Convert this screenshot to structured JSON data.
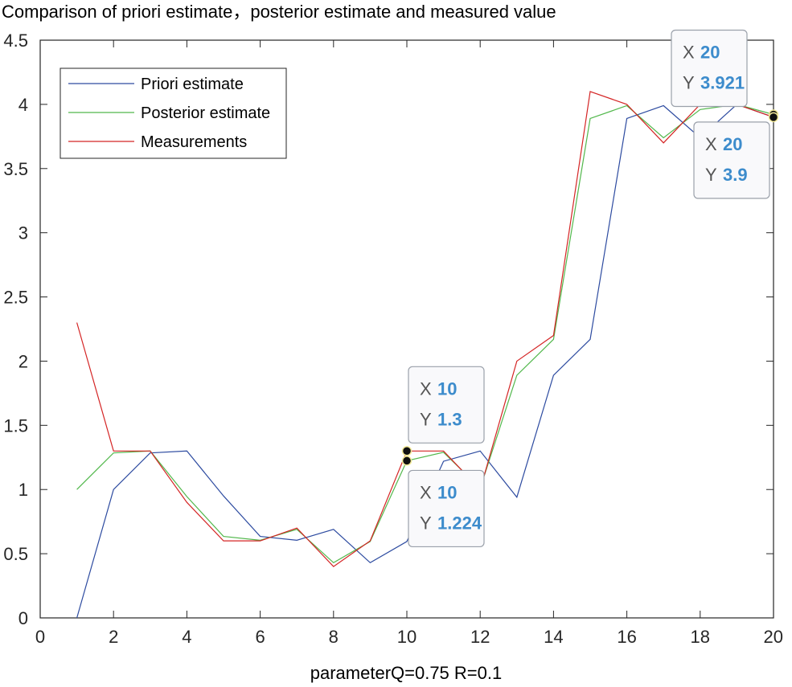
{
  "chart_data": {
    "type": "line",
    "title": "Comparison of priori estimate，posterior estimate and measured value",
    "xlabel": "parameterQ=0.75 R=0.1",
    "ylabel": "",
    "xlim": [
      0,
      20
    ],
    "ylim": [
      0,
      4.5
    ],
    "xticks": [
      0,
      2,
      4,
      6,
      8,
      10,
      12,
      14,
      16,
      18,
      20
    ],
    "yticks": [
      0,
      0.5,
      1,
      1.5,
      2,
      2.5,
      3,
      3.5,
      4,
      4.5
    ],
    "xtick_labels": [
      "0",
      "2",
      "4",
      "6",
      "8",
      "10",
      "12",
      "14",
      "16",
      "18",
      "20"
    ],
    "ytick_labels": [
      "0",
      "0.5",
      "1",
      "1.5",
      "2",
      "2.5",
      "3",
      "3.5",
      "4",
      "4.5"
    ],
    "grid": false,
    "legend_position": "top-left",
    "x": [
      1,
      2,
      3,
      4,
      5,
      6,
      7,
      8,
      9,
      10,
      11,
      12,
      13,
      14,
      15,
      16,
      17,
      18,
      19,
      20
    ],
    "series": [
      {
        "name": "Priori estimate",
        "color": "#2d4ba0",
        "values": [
          0,
          1.0,
          1.285,
          1.3,
          0.95,
          0.635,
          0.605,
          0.69,
          0.43,
          0.595,
          1.22,
          1.3,
          0.94,
          1.89,
          2.17,
          3.89,
          3.99,
          3.74,
          4.0,
          3.9
        ]
      },
      {
        "name": "Posterior estimate",
        "color": "#52b84c",
        "values": [
          1.0,
          1.285,
          1.3,
          0.945,
          0.635,
          0.605,
          0.69,
          0.43,
          0.595,
          1.224,
          1.29,
          1.01,
          1.89,
          2.17,
          3.89,
          3.99,
          3.74,
          3.96,
          4.0,
          3.921
        ]
      },
      {
        "name": "Measurements",
        "color": "#d42424",
        "values": [
          2.3,
          1.3,
          1.3,
          0.9,
          0.6,
          0.6,
          0.7,
          0.4,
          0.6,
          1.3,
          1.3,
          1.0,
          2.0,
          2.2,
          4.1,
          4.0,
          3.7,
          4.0,
          4.0,
          3.9
        ]
      }
    ],
    "datatips": [
      {
        "x": 10,
        "y": 1.3,
        "x_prefix": "X",
        "y_prefix": "Y",
        "x_text": "10",
        "y_text": "1.3",
        "placement": "above"
      },
      {
        "x": 10,
        "y": 1.224,
        "x_prefix": "X",
        "y_prefix": "Y",
        "x_text": "10",
        "y_text": "1.224",
        "placement": "below"
      },
      {
        "x": 20,
        "y": 3.921,
        "x_prefix": "X",
        "y_prefix": "Y",
        "x_text": "20",
        "y_text": "3.921",
        "placement": "above-left"
      },
      {
        "x": 20,
        "y": 3.9,
        "x_prefix": "X",
        "y_prefix": "Y",
        "x_text": "20",
        "y_text": "3.9",
        "placement": "below-left"
      }
    ]
  }
}
